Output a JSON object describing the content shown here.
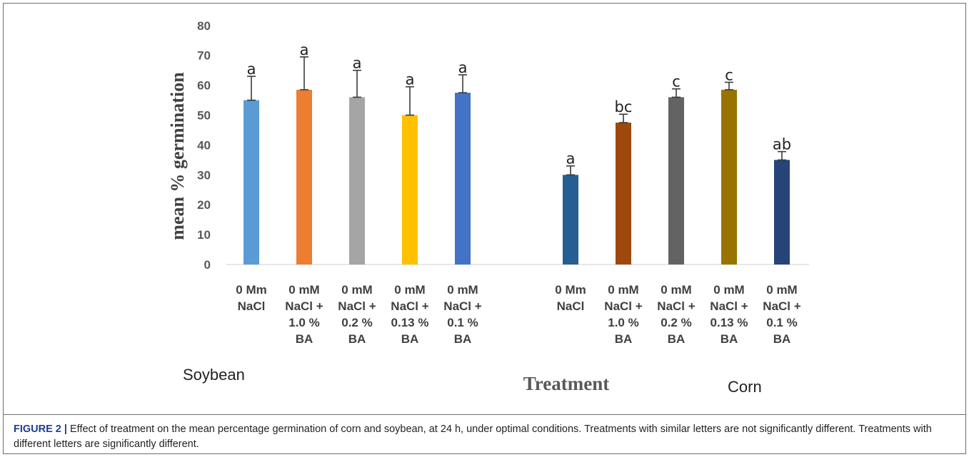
{
  "chart_data": {
    "type": "bar",
    "ylabel": "mean % germination",
    "xlabel": "Treatment",
    "ylim": [
      0,
      80
    ],
    "yticks": [
      0,
      10,
      20,
      30,
      40,
      50,
      60,
      70,
      80
    ],
    "grid": false,
    "groups": [
      {
        "name": "Soybean",
        "bars": [
          {
            "label": [
              "0 Mm",
              "NaCl"
            ],
            "value": 55,
            "error": 8,
            "sig": "a",
            "color": "#5B9BD5"
          },
          {
            "label": [
              "0 mM",
              "NaCl +",
              "1.0 %",
              "BA"
            ],
            "value": 58.5,
            "error": 11,
            "sig": "a",
            "color": "#ED7D31"
          },
          {
            "label": [
              "0 mM",
              "NaCl +",
              "0.2 %",
              "BA"
            ],
            "value": 56,
            "error": 9,
            "sig": "a",
            "color": "#A5A5A5"
          },
          {
            "label": [
              "0 mM",
              "NaCl +",
              "0.13 %",
              "BA"
            ],
            "value": 50,
            "error": 9.5,
            "sig": "a",
            "color": "#FFC000"
          },
          {
            "label": [
              "0 mM",
              "NaCl +",
              "0.1 %",
              "BA"
            ],
            "value": 57.5,
            "error": 6,
            "sig": "a",
            "color": "#4472C4"
          }
        ]
      },
      {
        "name": "Corn",
        "bars": [
          {
            "label": [
              "0 Mm",
              "NaCl"
            ],
            "value": 30,
            "error": 3,
            "sig": "a",
            "color": "#255E91"
          },
          {
            "label": [
              "0 mM",
              "NaCl +",
              "1.0 %",
              "BA"
            ],
            "value": 47.5,
            "error": 2.8,
            "sig": "bc",
            "color": "#9E480E"
          },
          {
            "label": [
              "0 mM",
              "NaCl +",
              "0.2 %",
              "BA"
            ],
            "value": 56,
            "error": 2.8,
            "sig": "c",
            "color": "#636363"
          },
          {
            "label": [
              "0 mM",
              "NaCl +",
              "0.13 %",
              "BA"
            ],
            "value": 58.5,
            "error": 2.5,
            "sig": "c",
            "color": "#997300"
          },
          {
            "label": [
              "0 mM",
              "NaCl +",
              "0.1 %",
              "BA"
            ],
            "value": 35,
            "error": 2.8,
            "sig": "ab",
            "color": "#264478"
          }
        ]
      }
    ]
  },
  "caption": {
    "label": "FIGURE 2 |",
    "text": "Effect of treatment on the mean percentage germination of corn and soybean, at 24 h, under optimal conditions. Treatments with similar letters are not significantly different. Treatments with different letters are significantly different."
  }
}
